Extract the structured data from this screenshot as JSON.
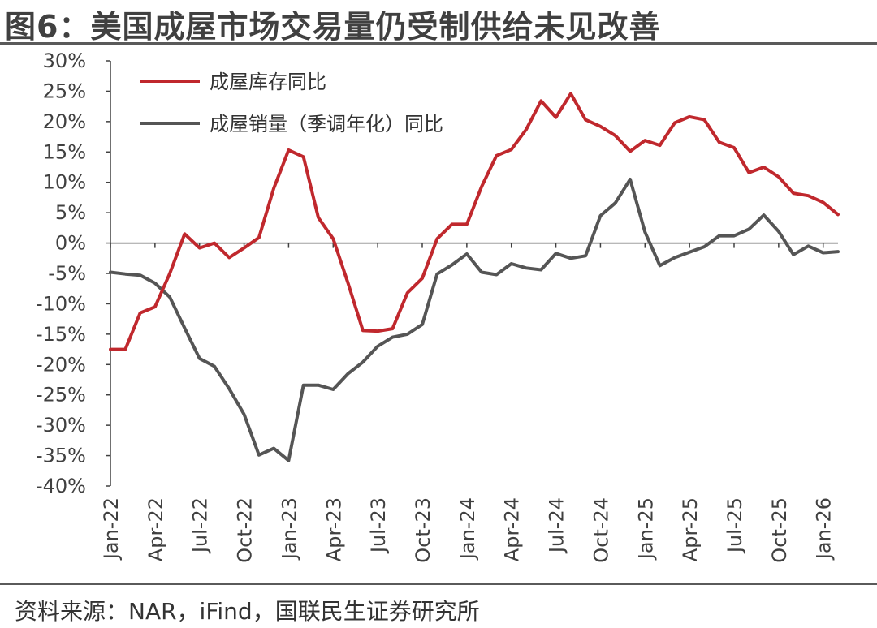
{
  "header": {
    "title": "图6：美国成屋市场交易量仍受制供给未见改善"
  },
  "footer": {
    "source": "资料来源：NAR，iFind，国联民生证券研究所"
  },
  "colors": {
    "inventory": "#c0282d",
    "sales": "#555555",
    "axis": "#404040"
  },
  "chart_data": {
    "type": "line",
    "title": "",
    "xlabel": "",
    "ylabel": "",
    "ylim": [
      -40,
      30
    ],
    "yticks": [
      30,
      25,
      20,
      15,
      10,
      5,
      0,
      -5,
      -10,
      -15,
      -20,
      -25,
      -30,
      -35,
      -40
    ],
    "ytick_labels": [
      "30%",
      "25%",
      "20%",
      "15%",
      "10%",
      "5%",
      "0%",
      "-5%",
      "-10%",
      "-15%",
      "-20%",
      "-25%",
      "-30%",
      "-35%",
      "-40%"
    ],
    "xtick_labels": [
      "Jan-22",
      "Apr-22",
      "Jul-22",
      "Oct-22",
      "Jan-23",
      "Apr-23",
      "Jul-23",
      "Oct-23",
      "Jan-24",
      "Apr-24",
      "Jul-24",
      "Oct-24",
      "Jan-25",
      "Apr-25",
      "Jul-25",
      "Oct-25",
      "Jan-26"
    ],
    "legend_position": "top-left",
    "grid": false,
    "x": [
      "Jan-22",
      "Feb-22",
      "Mar-22",
      "Apr-22",
      "May-22",
      "Jun-22",
      "Jul-22",
      "Aug-22",
      "Sep-22",
      "Oct-22",
      "Nov-22",
      "Dec-22",
      "Jan-23",
      "Feb-23",
      "Mar-23",
      "Apr-23",
      "May-23",
      "Jun-23",
      "Jul-23",
      "Aug-23",
      "Sep-23",
      "Oct-23",
      "Nov-23",
      "Dec-23",
      "Jan-24",
      "Feb-24",
      "Mar-24",
      "Apr-24",
      "May-24",
      "Jun-24",
      "Jul-24",
      "Aug-24",
      "Sep-24",
      "Oct-24",
      "Nov-24",
      "Dec-24",
      "Jan-25",
      "Feb-25",
      "Mar-25",
      "Apr-25",
      "May-25",
      "Jun-25",
      "Jul-25",
      "Aug-25",
      "Sep-25",
      "Oct-25",
      "Nov-25",
      "Dec-25",
      "Jan-26",
      "Feb-26"
    ],
    "series": [
      {
        "name": "成屋库存同比",
        "values": [
          -17.5,
          -17.5,
          -11.5,
          -10.5,
          -5.0,
          1.5,
          -0.8,
          0.0,
          -2.4,
          -0.8,
          0.9,
          9.0,
          15.3,
          14.2,
          4.2,
          0.7,
          -6.6,
          -14.4,
          -14.5,
          -14.1,
          -8.2,
          -5.8,
          0.7,
          3.1,
          3.1,
          9.3,
          14.4,
          15.4,
          18.7,
          23.4,
          20.7,
          24.6,
          20.3,
          19.2,
          17.7,
          15.1,
          16.9,
          16.1,
          19.8,
          20.8,
          20.3,
          16.6,
          15.7,
          11.6,
          12.5,
          10.9,
          8.2,
          7.8,
          6.7,
          4.7
        ]
      },
      {
        "name": "成屋销量（季调年化）同比",
        "values": [
          -4.8,
          -5.1,
          -5.3,
          -6.6,
          -8.9,
          -14.0,
          -19.0,
          -20.3,
          -24.0,
          -28.2,
          -34.9,
          -33.8,
          -35.8,
          -23.4,
          -23.4,
          -24.1,
          -21.5,
          -19.6,
          -17.0,
          -15.5,
          -15.0,
          -13.4,
          -5.1,
          -3.6,
          -1.8,
          -4.8,
          -5.2,
          -3.4,
          -4.1,
          -4.4,
          -1.7,
          -2.5,
          -2.1,
          4.5,
          6.6,
          10.5,
          1.8,
          -3.7,
          -2.4,
          -1.5,
          -0.6,
          1.2,
          1.2,
          2.3,
          4.6,
          1.9,
          -1.9,
          -0.5,
          -1.6,
          -1.4
        ]
      }
    ]
  }
}
